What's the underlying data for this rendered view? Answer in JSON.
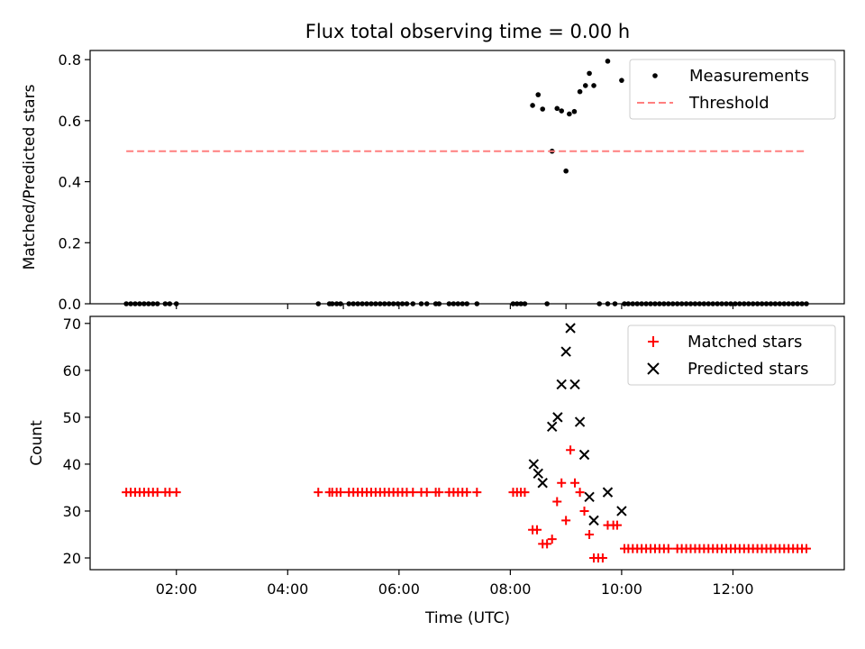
{
  "chart_data": {
    "title": "Flux total observing time = 0.00 h",
    "x_axis": {
      "label": "Time (UTC)",
      "unit": "hours UTC",
      "range": [
        0.45,
        14.0
      ],
      "ticks": [
        2,
        4,
        6,
        8,
        10,
        12
      ],
      "tick_labels": [
        "02:00",
        "04:00",
        "06:00",
        "08:00",
        "10:00",
        "12:00"
      ]
    },
    "panels": [
      {
        "type": "scatter",
        "ylabel": "Matched/Predicted stars",
        "ylim": [
          0.0,
          0.83
        ],
        "yticks": [
          0.0,
          0.2,
          0.4,
          0.6,
          0.8
        ],
        "ytick_labels": [
          "0.0",
          "0.2",
          "0.4",
          "0.6",
          "0.8"
        ],
        "legend_position": "top-right",
        "series": [
          {
            "name": "Measurements",
            "marker": "dot",
            "color": "#000000",
            "points": [
              [
                1.1,
                0
              ],
              [
                1.18,
                0
              ],
              [
                1.26,
                0
              ],
              [
                1.34,
                0
              ],
              [
                1.42,
                0
              ],
              [
                1.5,
                0
              ],
              [
                1.58,
                0
              ],
              [
                1.66,
                0
              ],
              [
                1.8,
                0
              ],
              [
                1.88,
                0
              ],
              [
                2.0,
                0
              ],
              [
                4.55,
                0
              ],
              [
                4.75,
                0
              ],
              [
                4.8,
                0
              ],
              [
                4.88,
                0
              ],
              [
                4.95,
                0
              ],
              [
                5.1,
                0
              ],
              [
                5.18,
                0
              ],
              [
                5.26,
                0
              ],
              [
                5.34,
                0
              ],
              [
                5.42,
                0
              ],
              [
                5.5,
                0
              ],
              [
                5.58,
                0
              ],
              [
                5.66,
                0
              ],
              [
                5.74,
                0
              ],
              [
                5.82,
                0
              ],
              [
                5.9,
                0
              ],
              [
                5.98,
                0
              ],
              [
                6.06,
                0
              ],
              [
                6.14,
                0
              ],
              [
                6.25,
                0
              ],
              [
                6.4,
                0
              ],
              [
                6.5,
                0
              ],
              [
                6.66,
                0
              ],
              [
                6.72,
                0
              ],
              [
                6.9,
                0
              ],
              [
                6.98,
                0
              ],
              [
                7.06,
                0
              ],
              [
                7.14,
                0
              ],
              [
                7.22,
                0
              ],
              [
                7.4,
                0
              ],
              [
                8.05,
                0
              ],
              [
                8.12,
                0
              ],
              [
                8.19,
                0
              ],
              [
                8.26,
                0
              ],
              [
                8.66,
                0
              ],
              [
                8.4,
                0.65
              ],
              [
                8.5,
                0.685
              ],
              [
                8.58,
                0.638
              ],
              [
                8.75,
                0.5
              ],
              [
                8.84,
                0.64
              ],
              [
                8.92,
                0.632
              ],
              [
                9.0,
                0.435
              ],
              [
                9.06,
                0.622
              ],
              [
                9.15,
                0.63
              ],
              [
                9.25,
                0.695
              ],
              [
                9.35,
                0.715
              ],
              [
                9.42,
                0.755
              ],
              [
                9.5,
                0.715
              ],
              [
                9.75,
                0.795
              ],
              [
                10.0,
                0.732
              ],
              [
                9.6,
                0
              ],
              [
                9.75,
                0
              ],
              [
                9.88,
                0
              ],
              [
                10.05,
                0
              ],
              [
                10.12,
                0
              ],
              [
                10.2,
                0
              ],
              [
                10.28,
                0
              ],
              [
                10.36,
                0
              ],
              [
                10.44,
                0
              ],
              [
                10.52,
                0
              ],
              [
                10.6,
                0
              ],
              [
                10.68,
                0
              ],
              [
                10.76,
                0
              ],
              [
                10.84,
                0
              ],
              [
                10.92,
                0
              ],
              [
                11.0,
                0
              ],
              [
                11.08,
                0
              ],
              [
                11.16,
                0
              ],
              [
                11.24,
                0
              ],
              [
                11.32,
                0
              ],
              [
                11.4,
                0
              ],
              [
                11.48,
                0
              ],
              [
                11.56,
                0
              ],
              [
                11.64,
                0
              ],
              [
                11.72,
                0
              ],
              [
                11.8,
                0
              ],
              [
                11.88,
                0
              ],
              [
                11.96,
                0
              ],
              [
                12.04,
                0
              ],
              [
                12.12,
                0
              ],
              [
                12.2,
                0
              ],
              [
                12.28,
                0
              ],
              [
                12.36,
                0
              ],
              [
                12.44,
                0
              ],
              [
                12.52,
                0
              ],
              [
                12.6,
                0
              ],
              [
                12.68,
                0
              ],
              [
                12.76,
                0
              ],
              [
                12.84,
                0
              ],
              [
                12.92,
                0
              ],
              [
                13.0,
                0
              ],
              [
                13.08,
                0
              ],
              [
                13.16,
                0
              ],
              [
                13.24,
                0
              ],
              [
                13.32,
                0
              ]
            ]
          },
          {
            "name": "Threshold",
            "type": "line",
            "style": "dashed",
            "color": "#ff7f7f",
            "points": [
              [
                1.1,
                0.5
              ],
              [
                13.32,
                0.5
              ]
            ]
          }
        ]
      },
      {
        "type": "scatter",
        "ylabel": "Count",
        "ylim": [
          17.5,
          71.5
        ],
        "yticks": [
          20,
          30,
          40,
          50,
          60,
          70
        ],
        "ytick_labels": [
          "20",
          "30",
          "40",
          "50",
          "60",
          "70"
        ],
        "legend_position": "top-right",
        "series": [
          {
            "name": "Matched stars",
            "marker": "plus",
            "color": "#ff0000",
            "points": [
              [
                1.1,
                34
              ],
              [
                1.18,
                34
              ],
              [
                1.26,
                34
              ],
              [
                1.34,
                34
              ],
              [
                1.42,
                34
              ],
              [
                1.5,
                34
              ],
              [
                1.58,
                34
              ],
              [
                1.66,
                34
              ],
              [
                1.8,
                34
              ],
              [
                1.88,
                34
              ],
              [
                2.0,
                34
              ],
              [
                4.55,
                34
              ],
              [
                4.75,
                34
              ],
              [
                4.8,
                34
              ],
              [
                4.88,
                34
              ],
              [
                4.95,
                34
              ],
              [
                5.1,
                34
              ],
              [
                5.18,
                34
              ],
              [
                5.26,
                34
              ],
              [
                5.34,
                34
              ],
              [
                5.42,
                34
              ],
              [
                5.5,
                34
              ],
              [
                5.58,
                34
              ],
              [
                5.66,
                34
              ],
              [
                5.74,
                34
              ],
              [
                5.82,
                34
              ],
              [
                5.9,
                34
              ],
              [
                5.98,
                34
              ],
              [
                6.06,
                34
              ],
              [
                6.14,
                34
              ],
              [
                6.25,
                34
              ],
              [
                6.4,
                34
              ],
              [
                6.5,
                34
              ],
              [
                6.66,
                34
              ],
              [
                6.72,
                34
              ],
              [
                6.9,
                34
              ],
              [
                6.98,
                34
              ],
              [
                7.06,
                34
              ],
              [
                7.14,
                34
              ],
              [
                7.22,
                34
              ],
              [
                7.4,
                34
              ],
              [
                8.05,
                34
              ],
              [
                8.12,
                34
              ],
              [
                8.19,
                34
              ],
              [
                8.26,
                34
              ],
              [
                8.4,
                26
              ],
              [
                8.48,
                26
              ],
              [
                8.58,
                23
              ],
              [
                8.66,
                23
              ],
              [
                8.75,
                24
              ],
              [
                8.84,
                32
              ],
              [
                8.92,
                36
              ],
              [
                9.0,
                28
              ],
              [
                9.08,
                43
              ],
              [
                9.16,
                36
              ],
              [
                9.25,
                34
              ],
              [
                9.33,
                30
              ],
              [
                9.42,
                25
              ],
              [
                9.5,
                20
              ],
              [
                9.58,
                20
              ],
              [
                9.66,
                20
              ],
              [
                9.75,
                27
              ],
              [
                9.85,
                27
              ],
              [
                9.92,
                27
              ],
              [
                10.05,
                22
              ],
              [
                10.12,
                22
              ],
              [
                10.2,
                22
              ],
              [
                10.28,
                22
              ],
              [
                10.36,
                22
              ],
              [
                10.44,
                22
              ],
              [
                10.52,
                22
              ],
              [
                10.6,
                22
              ],
              [
                10.68,
                22
              ],
              [
                10.76,
                22
              ],
              [
                10.84,
                22
              ],
              [
                11.0,
                22
              ],
              [
                11.08,
                22
              ],
              [
                11.16,
                22
              ],
              [
                11.24,
                22
              ],
              [
                11.32,
                22
              ],
              [
                11.4,
                22
              ],
              [
                11.48,
                22
              ],
              [
                11.56,
                22
              ],
              [
                11.64,
                22
              ],
              [
                11.72,
                22
              ],
              [
                11.8,
                22
              ],
              [
                11.88,
                22
              ],
              [
                11.96,
                22
              ],
              [
                12.04,
                22
              ],
              [
                12.12,
                22
              ],
              [
                12.2,
                22
              ],
              [
                12.28,
                22
              ],
              [
                12.36,
                22
              ],
              [
                12.44,
                22
              ],
              [
                12.52,
                22
              ],
              [
                12.6,
                22
              ],
              [
                12.68,
                22
              ],
              [
                12.76,
                22
              ],
              [
                12.84,
                22
              ],
              [
                12.92,
                22
              ],
              [
                13.0,
                22
              ],
              [
                13.08,
                22
              ],
              [
                13.16,
                22
              ],
              [
                13.24,
                22
              ],
              [
                13.32,
                22
              ]
            ]
          },
          {
            "name": "Predicted stars",
            "marker": "x",
            "color": "#000000",
            "points": [
              [
                8.42,
                40
              ],
              [
                8.5,
                38
              ],
              [
                8.58,
                36
              ],
              [
                8.75,
                48
              ],
              [
                8.85,
                50
              ],
              [
                8.92,
                57
              ],
              [
                9.0,
                64
              ],
              [
                9.08,
                69
              ],
              [
                9.16,
                57
              ],
              [
                9.25,
                49
              ],
              [
                9.33,
                42
              ],
              [
                9.42,
                33
              ],
              [
                9.5,
                28
              ],
              [
                9.75,
                34
              ],
              [
                10.0,
                30
              ]
            ]
          }
        ]
      }
    ]
  }
}
